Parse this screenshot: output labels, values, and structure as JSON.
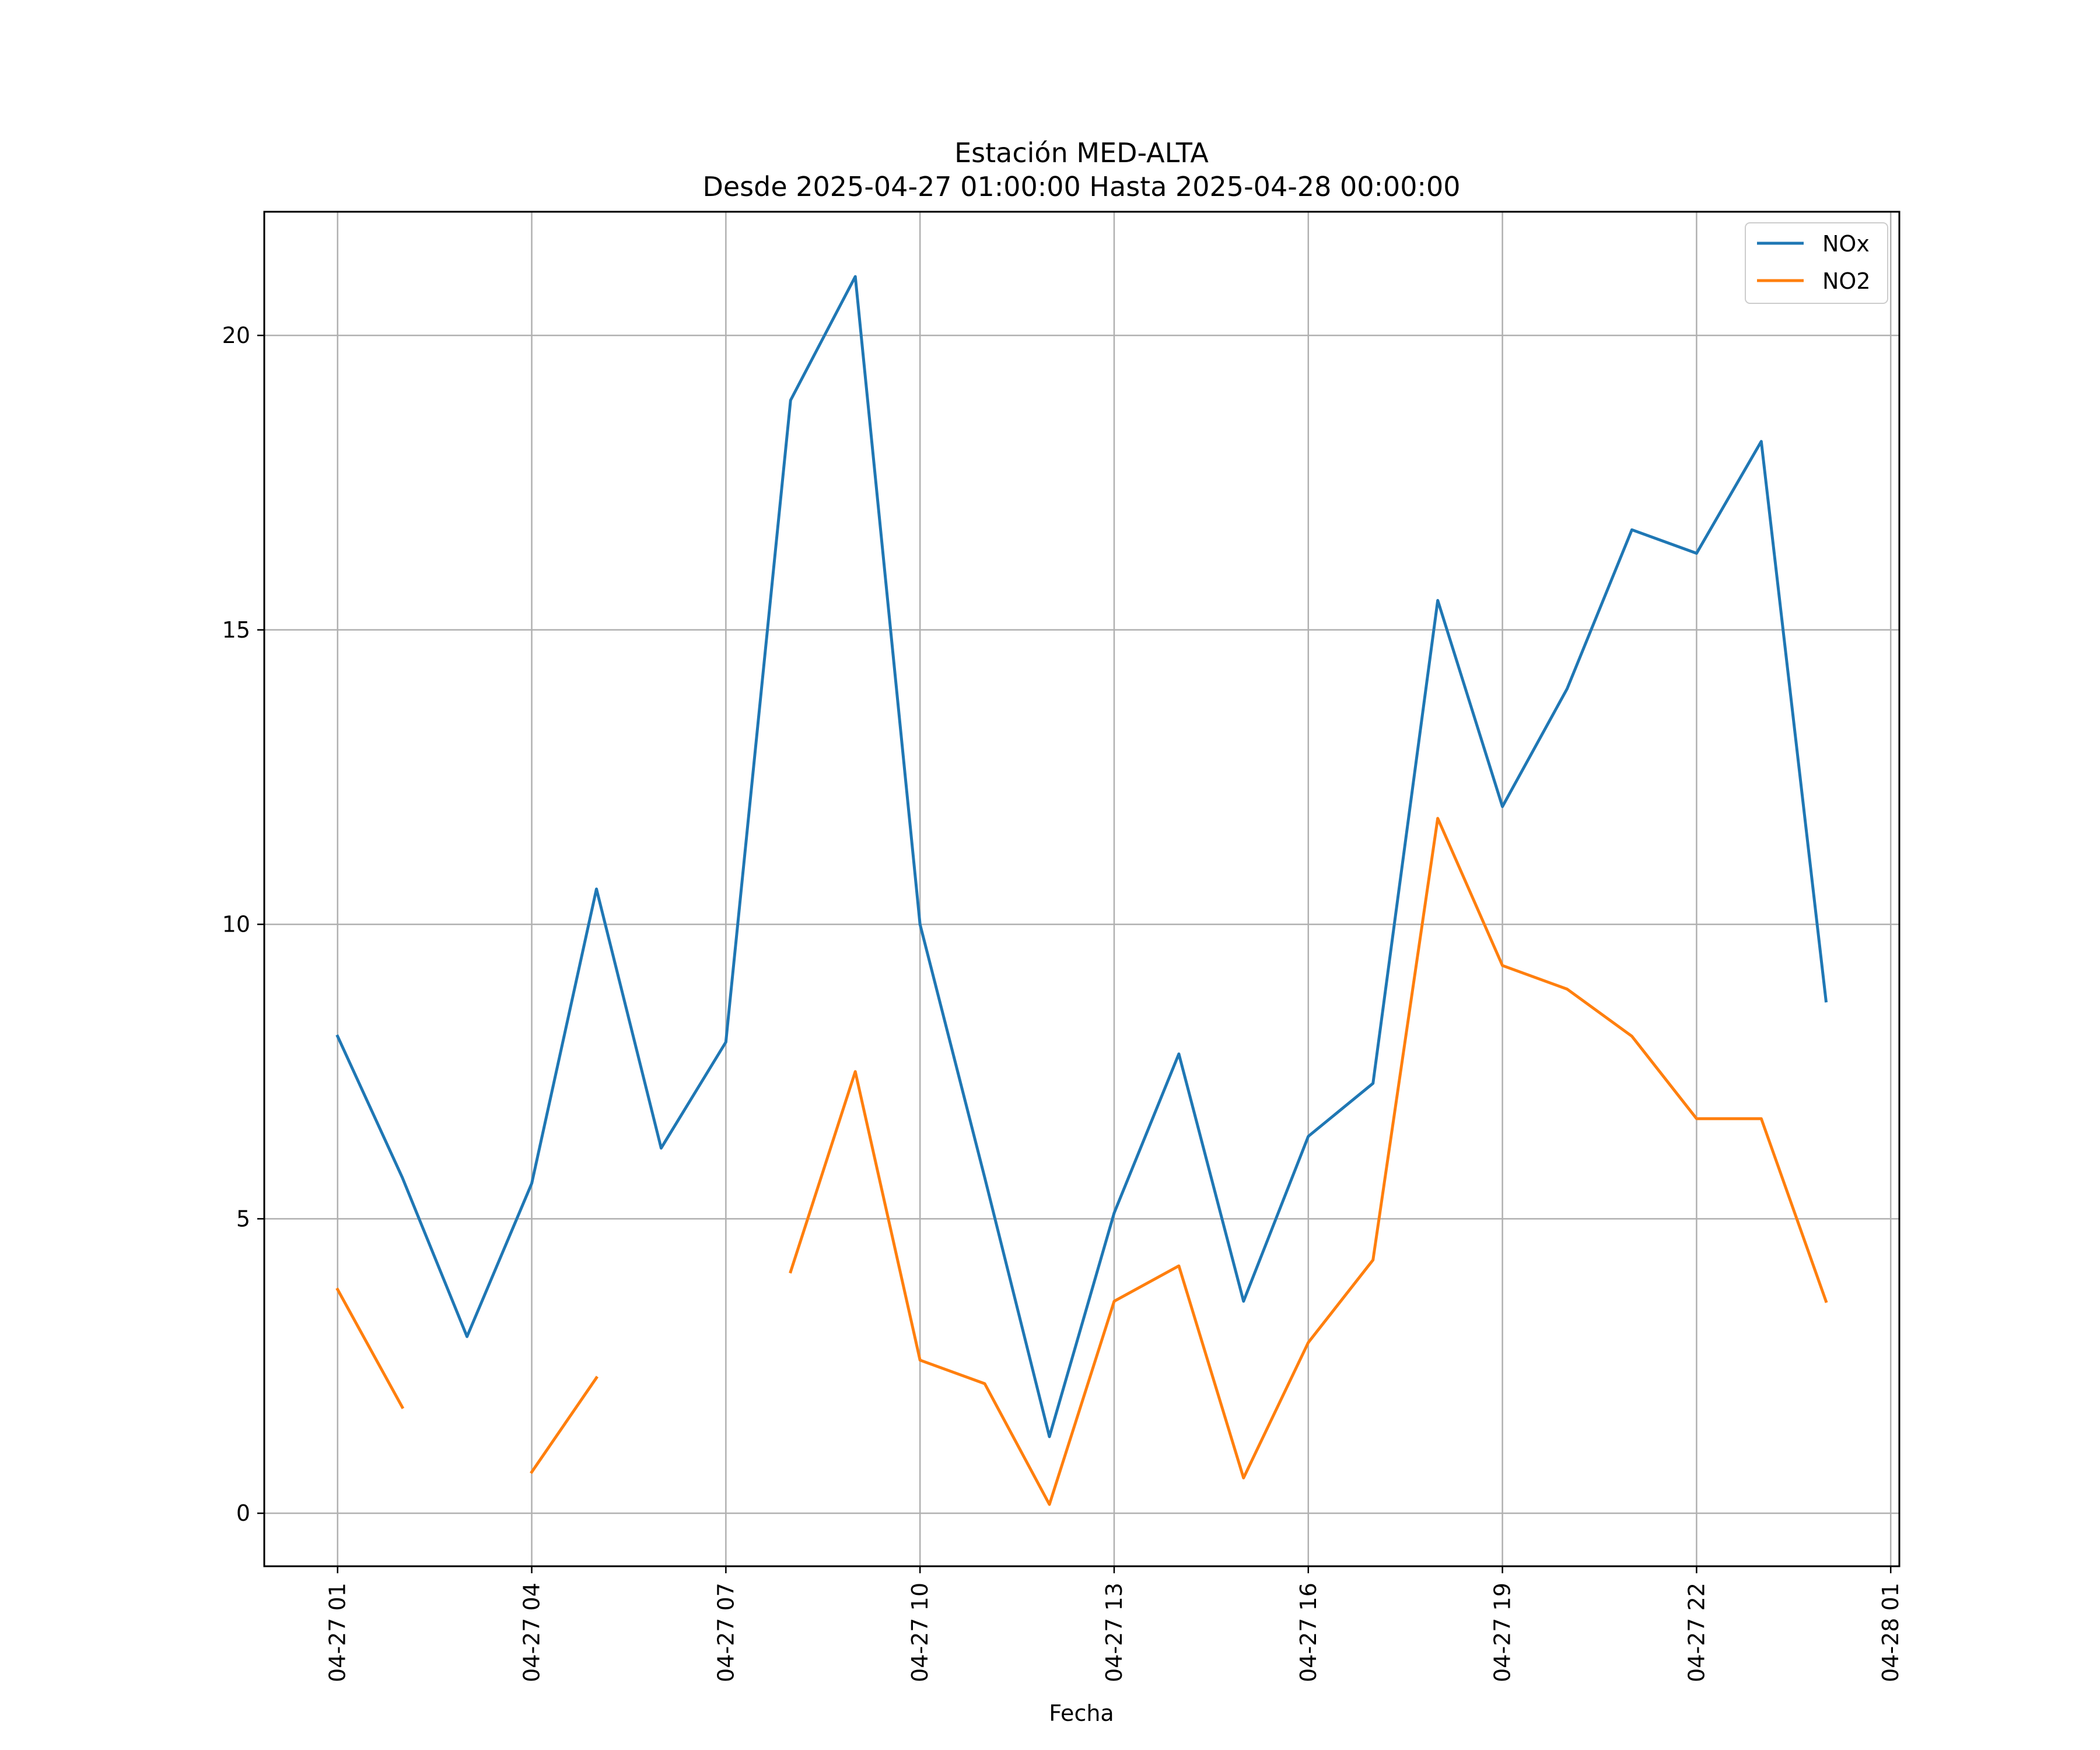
{
  "chart_data": {
    "type": "line",
    "title": "Estación MED-ALTA",
    "subtitle": "Desde 2025-04-27 01:00:00 Hasta 2025-04-28 00:00:00",
    "xlabel": "Fecha",
    "ylabel": "",
    "x": [
      "2025-04-27 01:00",
      "2025-04-27 02:00",
      "2025-04-27 03:00",
      "2025-04-27 04:00",
      "2025-04-27 05:00",
      "2025-04-27 06:00",
      "2025-04-27 07:00",
      "2025-04-27 08:00",
      "2025-04-27 09:00",
      "2025-04-27 10:00",
      "2025-04-27 11:00",
      "2025-04-27 12:00",
      "2025-04-27 13:00",
      "2025-04-27 14:00",
      "2025-04-27 15:00",
      "2025-04-27 16:00",
      "2025-04-27 17:00",
      "2025-04-27 18:00",
      "2025-04-27 19:00",
      "2025-04-27 20:00",
      "2025-04-27 21:00",
      "2025-04-27 22:00",
      "2025-04-27 23:00",
      "2025-04-28 00:00"
    ],
    "series": [
      {
        "name": "NOx",
        "color": "#1f77b4",
        "values": [
          8.1,
          5.7,
          3.0,
          5.6,
          10.6,
          6.2,
          8.0,
          18.9,
          21.0,
          10.0,
          5.7,
          1.3,
          5.1,
          7.8,
          3.6,
          6.4,
          7.3,
          15.5,
          12.0,
          14.0,
          16.7,
          16.3,
          18.2,
          8.7
        ]
      },
      {
        "name": "NO2",
        "color": "#ff7f0e",
        "values": [
          3.8,
          1.8,
          null,
          0.7,
          2.3,
          null,
          null,
          4.1,
          7.5,
          2.6,
          2.2,
          0.15,
          3.6,
          4.2,
          0.6,
          2.9,
          4.3,
          11.8,
          9.3,
          8.9,
          8.1,
          6.7,
          6.7,
          3.6
        ]
      }
    ],
    "xticks": [
      "04-27 01",
      "04-27 04",
      "04-27 07",
      "04-27 10",
      "04-27 13",
      "04-27 16",
      "04-27 19",
      "04-27 22",
      "04-28 01"
    ],
    "yticks": [
      "0",
      "5",
      "10",
      "15",
      "20"
    ],
    "xlim": [
      "2025-04-26 23:52",
      "2025-04-28 01:08"
    ],
    "ylim": [
      -0.9,
      22.1
    ],
    "grid": true,
    "legend_position": "upper right"
  }
}
